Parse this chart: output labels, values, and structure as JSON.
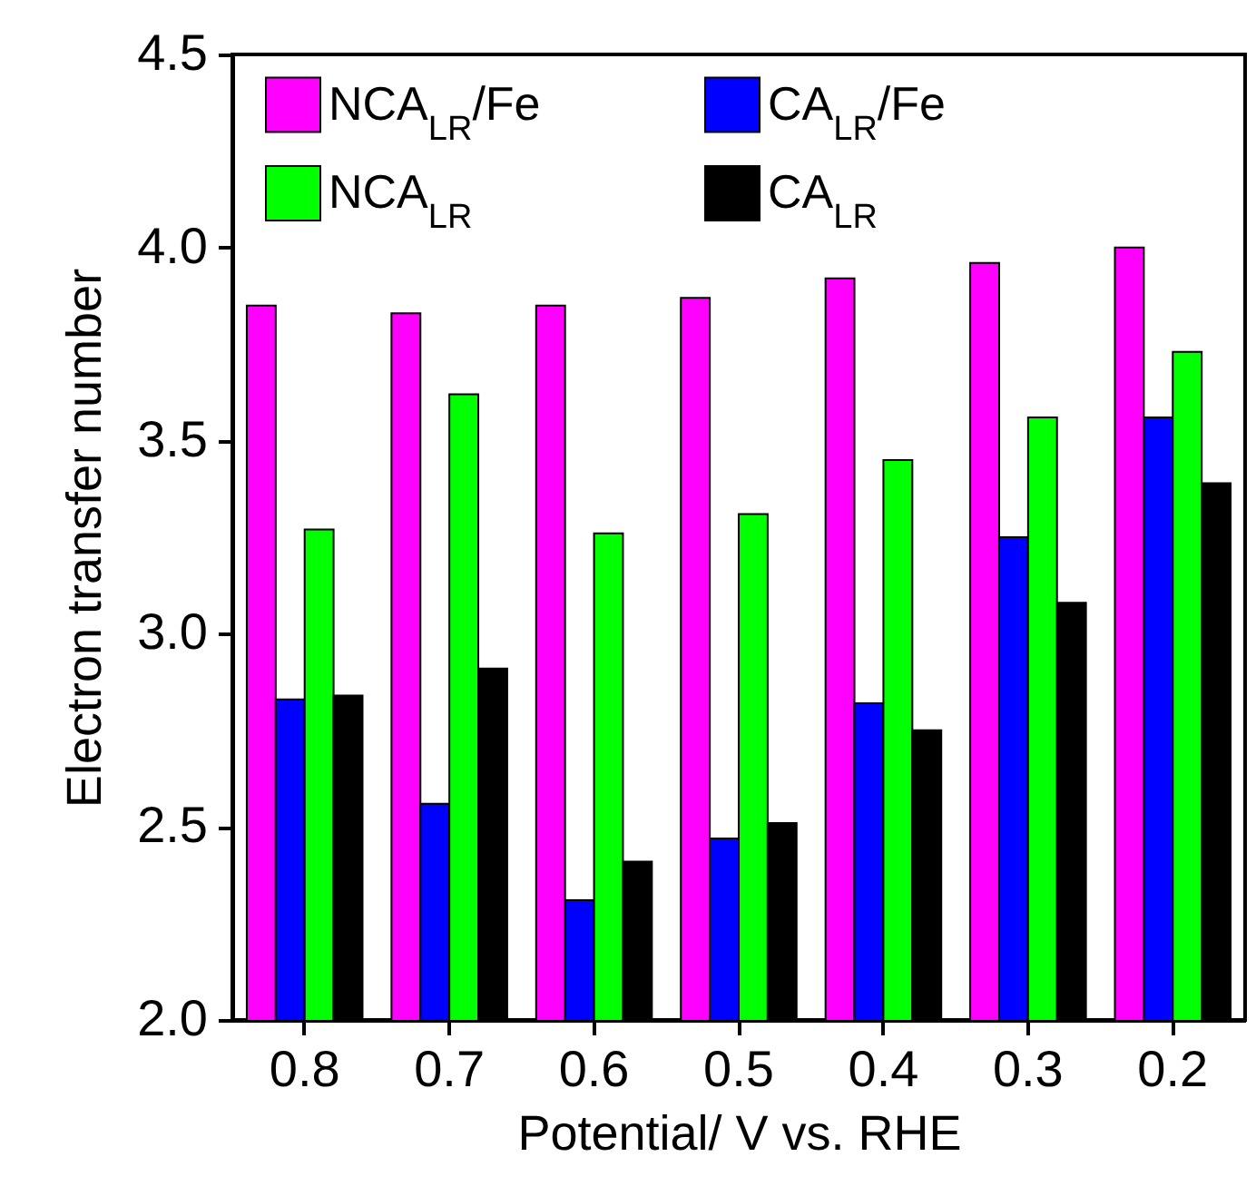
{
  "chart_data": {
    "type": "bar",
    "xlabel": "Potential/ V vs. RHE",
    "ylabel": "Electron transfer number",
    "categories": [
      "0.8",
      "0.7",
      "0.6",
      "0.5",
      "0.4",
      "0.3",
      "0.2"
    ],
    "series": [
      {
        "name": "NCA$_{LR}$/Fe",
        "color": "#ff00ff",
        "values": [
          3.85,
          3.83,
          3.85,
          3.87,
          3.92,
          3.96,
          4.0
        ]
      },
      {
        "name": "CA$_{LR}$/Fe",
        "color": "#0000ff",
        "values": [
          2.83,
          2.56,
          2.31,
          2.47,
          2.82,
          3.25,
          3.56
        ]
      },
      {
        "name": "NCA$_{LR}$",
        "color": "#00ff00",
        "values": [
          3.27,
          3.62,
          3.26,
          3.31,
          3.45,
          3.56,
          3.73
        ]
      },
      {
        "name": "CA$_{LR}$",
        "color": "#000000",
        "values": [
          2.84,
          2.91,
          2.41,
          2.51,
          2.75,
          3.08,
          3.39
        ]
      }
    ],
    "ylim": [
      2.0,
      4.5
    ],
    "yticks": [
      {
        "value": 2.0,
        "label": "2.0"
      },
      {
        "value": 2.5,
        "label": "2.5"
      },
      {
        "value": 3.0,
        "label": "3.0"
      },
      {
        "value": 3.5,
        "label": "3.5"
      },
      {
        "value": 4.0,
        "label": "4.0"
      },
      {
        "value": 4.5,
        "label": "4.5"
      }
    ],
    "grid": false,
    "legend": "top left"
  }
}
